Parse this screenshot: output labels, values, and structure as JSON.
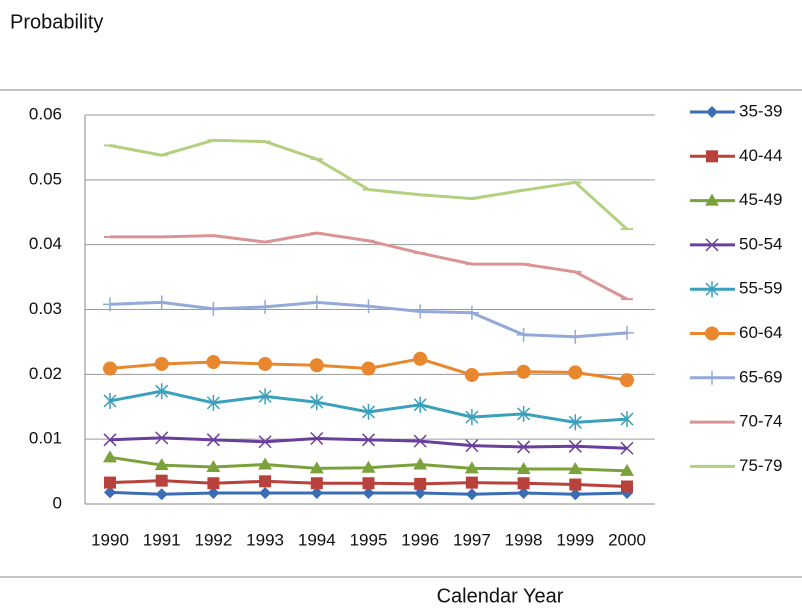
{
  "chart_data": {
    "type": "line",
    "y_label": "Probability",
    "x_label": "Calendar Year",
    "categories": [
      "1990",
      "1991",
      "1992",
      "1993",
      "1994",
      "1995",
      "1996",
      "1997",
      "1998",
      "1999",
      "2000"
    ],
    "ylim": [
      0,
      0.06
    ],
    "yticks": [
      0,
      0.01,
      0.02,
      0.03,
      0.04,
      0.05,
      0.06
    ],
    "grid": true,
    "legend": "right",
    "series": [
      {
        "name": "35-39",
        "color": "#3a6db3",
        "marker": "diamond",
        "values": [
          0.0018,
          0.0015,
          0.0017,
          0.0017,
          0.0017,
          0.0017,
          0.0017,
          0.0015,
          0.0017,
          0.0015,
          0.0017
        ]
      },
      {
        "name": "40-44",
        "color": "#b8413b",
        "marker": "square",
        "values": [
          0.0033,
          0.0036,
          0.0032,
          0.0035,
          0.0032,
          0.0032,
          0.0031,
          0.0033,
          0.0032,
          0.003,
          0.0027
        ]
      },
      {
        "name": "45-49",
        "color": "#7ba23a",
        "marker": "triangle",
        "values": [
          0.0072,
          0.006,
          0.0057,
          0.0061,
          0.0055,
          0.0056,
          0.0061,
          0.0055,
          0.0054,
          0.0054,
          0.0051
        ]
      },
      {
        "name": "50-54",
        "color": "#6a3f9c",
        "marker": "x",
        "values": [
          0.0099,
          0.0102,
          0.0099,
          0.0096,
          0.0101,
          0.0099,
          0.0097,
          0.009,
          0.0088,
          0.0089,
          0.0086
        ]
      },
      {
        "name": "55-59",
        "color": "#3aa0bc",
        "marker": "asterisk",
        "values": [
          0.0159,
          0.0174,
          0.0156,
          0.0166,
          0.0157,
          0.0142,
          0.0153,
          0.0134,
          0.0139,
          0.0126,
          0.0131
        ]
      },
      {
        "name": "60-64",
        "color": "#e8872d",
        "marker": "circle",
        "values": [
          0.0209,
          0.0216,
          0.0219,
          0.0216,
          0.0214,
          0.0209,
          0.0224,
          0.0199,
          0.0204,
          0.0203,
          0.0191
        ]
      },
      {
        "name": "65-69",
        "color": "#93a9d8",
        "marker": "plus",
        "values": [
          0.0308,
          0.0311,
          0.0301,
          0.0304,
          0.0311,
          0.0305,
          0.0297,
          0.0295,
          0.0261,
          0.0258,
          0.0264
        ]
      },
      {
        "name": "70-74",
        "color": "#d99494",
        "marker": "dash",
        "values": [
          0.0412,
          0.0412,
          0.0414,
          0.0404,
          0.0418,
          0.0406,
          0.0387,
          0.037,
          0.037,
          0.0358,
          0.0316
        ]
      },
      {
        "name": "75-79",
        "color": "#b3d07f",
        "marker": "dash",
        "values": [
          0.0553,
          0.0538,
          0.0561,
          0.0559,
          0.0532,
          0.0485,
          0.0477,
          0.0471,
          0.0484,
          0.0496,
          0.0424
        ]
      }
    ]
  }
}
